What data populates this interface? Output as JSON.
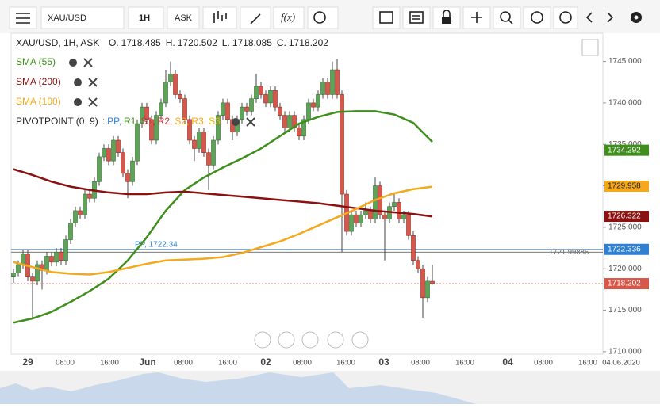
{
  "toolbar": {
    "symbol": "XAU/USD",
    "interval": "1H",
    "price_type": "ASK",
    "function": "f(x)"
  },
  "chart_data": {
    "type": "candlestick",
    "header": "XAU/USD, 1H, ASK",
    "ohlc_labels": [
      "O.",
      "H.",
      "L.",
      "C."
    ],
    "up_color": "#5fa35a",
    "down_color": "#d6584b",
    "ylim": [
      1709.7,
      1748.4
    ],
    "yticks": [
      {
        "value": 1710,
        "label": "1710.000"
      },
      {
        "value": 1715,
        "label": "1715.000"
      },
      {
        "value": 1720,
        "label": "1720.000"
      },
      {
        "value": 1725,
        "label": "1725.000"
      },
      {
        "value": 1730,
        "label": "1730.000"
      },
      {
        "value": 1735,
        "label": "1735.000"
      },
      {
        "value": 1740,
        "label": "1740.000"
      },
      {
        "value": 1745,
        "label": "1745.000"
      }
    ],
    "xlabels": [
      "29",
      "08:00",
      "16:00",
      "Jun",
      "08:00",
      "16:00",
      "02",
      "08:00",
      "16:00",
      "03",
      "08:00",
      "16:00",
      "04",
      "08:00",
      "16:00",
      "04.06.2020"
    ],
    "ohlc": [
      [
        1719.0,
        1720.0,
        1718.3,
        1719.5
      ],
      [
        1719.5,
        1721.0,
        1719.0,
        1720.5
      ],
      [
        1720.5,
        1722.3,
        1720.0,
        1721.8
      ],
      [
        1721.8,
        1722.3,
        1718.5,
        1719.0
      ],
      [
        1719.0,
        1719.5,
        1714.0,
        1718.5
      ],
      [
        1718.5,
        1721.0,
        1718.0,
        1720.5
      ],
      [
        1720.5,
        1721.0,
        1717.5,
        1719.8
      ],
      [
        1719.8,
        1722.0,
        1719.3,
        1721.5
      ],
      [
        1721.5,
        1722.0,
        1720.3,
        1720.8
      ],
      [
        1720.8,
        1722.5,
        1720.3,
        1722.0
      ],
      [
        1722.0,
        1722.5,
        1720.5,
        1721.0
      ],
      [
        1721.0,
        1724.0,
        1720.5,
        1723.5
      ],
      [
        1723.5,
        1726.0,
        1723.0,
        1725.5
      ],
      [
        1725.5,
        1727.5,
        1725.0,
        1727.0
      ],
      [
        1727.0,
        1727.5,
        1726.0,
        1726.5
      ],
      [
        1726.5,
        1729.5,
        1726.0,
        1729.0
      ],
      [
        1729.0,
        1729.5,
        1728.0,
        1728.5
      ],
      [
        1728.5,
        1731.0,
        1728.0,
        1730.5
      ],
      [
        1730.5,
        1734.0,
        1730.0,
        1733.5
      ],
      [
        1733.5,
        1735.0,
        1733.0,
        1734.5
      ],
      [
        1734.5,
        1735.0,
        1732.5,
        1733.0
      ],
      [
        1733.0,
        1736.0,
        1732.5,
        1735.5
      ],
      [
        1735.5,
        1736.0,
        1733.5,
        1734.0
      ],
      [
        1734.0,
        1734.5,
        1731.0,
        1731.5
      ],
      [
        1731.5,
        1732.0,
        1728.5,
        1730.5
      ],
      [
        1730.5,
        1733.5,
        1730.0,
        1733.0
      ],
      [
        1733.0,
        1738.0,
        1732.5,
        1737.5
      ],
      [
        1737.5,
        1740.0,
        1737.0,
        1739.5
      ],
      [
        1739.5,
        1740.0,
        1737.5,
        1738.0
      ],
      [
        1738.0,
        1738.5,
        1735.0,
        1735.5
      ],
      [
        1735.5,
        1739.0,
        1735.0,
        1738.5
      ],
      [
        1738.5,
        1740.5,
        1738.0,
        1740.0
      ],
      [
        1740.0,
        1744.0,
        1739.5,
        1742.5
      ],
      [
        1742.5,
        1745.0,
        1742.0,
        1743.5
      ],
      [
        1743.5,
        1744.0,
        1740.5,
        1741.0
      ],
      [
        1741.0,
        1741.5,
        1740.0,
        1740.5
      ],
      [
        1740.5,
        1741.0,
        1737.5,
        1738.0
      ],
      [
        1738.0,
        1738.5,
        1735.0,
        1735.5
      ],
      [
        1735.5,
        1736.0,
        1733.0,
        1734.5
      ],
      [
        1734.5,
        1737.0,
        1734.0,
        1736.5
      ],
      [
        1736.5,
        1737.0,
        1733.5,
        1734.0
      ],
      [
        1734.0,
        1734.5,
        1729.5,
        1732.5
      ],
      [
        1732.5,
        1736.0,
        1732.0,
        1735.5
      ],
      [
        1735.5,
        1739.0,
        1735.0,
        1738.5
      ],
      [
        1738.5,
        1740.5,
        1738.0,
        1740.0
      ],
      [
        1740.0,
        1740.5,
        1737.5,
        1738.0
      ],
      [
        1738.0,
        1738.5,
        1735.5,
        1736.5
      ],
      [
        1736.5,
        1738.5,
        1736.0,
        1738.0
      ],
      [
        1738.0,
        1740.0,
        1737.5,
        1739.5
      ],
      [
        1739.5,
        1740.0,
        1738.5,
        1739.0
      ],
      [
        1739.0,
        1741.0,
        1738.5,
        1740.5
      ],
      [
        1740.5,
        1743.5,
        1740.0,
        1742.0
      ],
      [
        1742.0,
        1742.5,
        1740.5,
        1741.0
      ],
      [
        1741.0,
        1741.5,
        1739.5,
        1740.0
      ],
      [
        1740.0,
        1742.0,
        1739.5,
        1741.5
      ],
      [
        1741.5,
        1742.0,
        1739.0,
        1739.5
      ],
      [
        1739.5,
        1740.0,
        1738.0,
        1738.5
      ],
      [
        1738.5,
        1739.0,
        1736.5,
        1737.0
      ],
      [
        1737.0,
        1739.0,
        1736.5,
        1738.5
      ],
      [
        1738.5,
        1739.0,
        1736.5,
        1737.0
      ],
      [
        1737.0,
        1737.5,
        1735.5,
        1736.0
      ],
      [
        1736.0,
        1738.5,
        1735.5,
        1738.0
      ],
      [
        1738.0,
        1740.5,
        1737.5,
        1740.0
      ],
      [
        1740.0,
        1740.5,
        1739.0,
        1739.5
      ],
      [
        1739.5,
        1741.5,
        1739.0,
        1741.0
      ],
      [
        1741.0,
        1743.0,
        1740.5,
        1742.5
      ],
      [
        1742.5,
        1743.0,
        1740.5,
        1741.0
      ],
      [
        1741.0,
        1745.0,
        1740.5,
        1744.0
      ],
      [
        1744.0,
        1745.3,
        1740.5,
        1741.0
      ],
      [
        1741.0,
        1741.5,
        1722.0,
        1729.0
      ],
      [
        1729.0,
        1729.5,
        1724.0,
        1724.5
      ],
      [
        1724.5,
        1727.0,
        1724.0,
        1726.5
      ],
      [
        1726.5,
        1727.0,
        1725.0,
        1725.5
      ],
      [
        1725.5,
        1727.0,
        1725.0,
        1726.5
      ],
      [
        1726.5,
        1728.0,
        1726.0,
        1727.0
      ],
      [
        1727.0,
        1727.5,
        1725.5,
        1726.0
      ],
      [
        1726.0,
        1731.0,
        1725.5,
        1730.0
      ],
      [
        1730.0,
        1730.5,
        1726.0,
        1726.5
      ],
      [
        1726.5,
        1727.0,
        1721.0,
        1726.0
      ],
      [
        1726.0,
        1728.0,
        1725.5,
        1727.5
      ],
      [
        1727.5,
        1729.0,
        1727.0,
        1728.0
      ],
      [
        1728.0,
        1728.5,
        1725.5,
        1726.0
      ],
      [
        1726.0,
        1727.0,
        1725.5,
        1726.5
      ],
      [
        1726.5,
        1727.0,
        1723.5,
        1724.0
      ],
      [
        1724.0,
        1724.5,
        1720.5,
        1721.0
      ],
      [
        1721.0,
        1721.5,
        1719.5,
        1720.0
      ],
      [
        1720.0,
        1720.5,
        1714.0,
        1716.5
      ],
      [
        1716.5,
        1719.0,
        1716.0,
        1718.5
      ],
      [
        1718.485,
        1720.502,
        1718.085,
        1718.202
      ]
    ],
    "series": [
      {
        "name": "SMA (55)",
        "color": "#3f8f1c",
        "x": [
          0,
          4,
          8,
          12,
          16,
          20,
          24,
          28,
          32,
          36,
          40,
          44,
          48,
          52,
          56,
          60,
          64,
          68,
          72,
          76,
          80,
          84,
          88
        ],
        "values": [
          1713.5,
          1714.0,
          1714.8,
          1716.0,
          1717.3,
          1718.8,
          1721.0,
          1723.8,
          1727.0,
          1729.5,
          1731.0,
          1732.2,
          1733.3,
          1734.5,
          1736.0,
          1737.5,
          1738.3,
          1738.9,
          1739.0,
          1739.0,
          1738.6,
          1737.6,
          1735.3
        ]
      },
      {
        "name": "SMA (200)",
        "color": "#8b1010",
        "x": [
          0,
          4,
          8,
          12,
          16,
          20,
          24,
          28,
          32,
          36,
          40,
          44,
          48,
          52,
          56,
          60,
          64,
          68,
          72,
          76,
          80,
          84,
          88
        ],
        "values": [
          1732.0,
          1731.3,
          1730.5,
          1729.9,
          1729.5,
          1729.2,
          1729.0,
          1729.0,
          1729.2,
          1729.3,
          1729.1,
          1728.9,
          1728.7,
          1728.5,
          1728.3,
          1728.1,
          1727.9,
          1727.6,
          1727.3,
          1727.0,
          1726.8,
          1726.6,
          1726.3
        ]
      },
      {
        "name": "SMA (100)",
        "color": "#f5a81c",
        "x": [
          0,
          4,
          8,
          12,
          16,
          20,
          24,
          28,
          32,
          36,
          40,
          44,
          48,
          52,
          56,
          60,
          64,
          68,
          72,
          76,
          80,
          84,
          88
        ],
        "values": [
          1720.8,
          1720.2,
          1719.6,
          1719.4,
          1719.3,
          1719.6,
          1720.1,
          1720.6,
          1721.0,
          1721.1,
          1721.2,
          1721.4,
          1721.9,
          1722.6,
          1723.3,
          1724.2,
          1725.2,
          1726.2,
          1727.2,
          1728.3,
          1729.1,
          1729.6,
          1729.9
        ]
      }
    ],
    "pivot": {
      "name": "PIVOTPOINT (0, 9)",
      "prefix": ":",
      "separator": ",",
      "levels": [
        {
          "name": "PP",
          "color": "#2f80d0"
        },
        {
          "name": "R1",
          "color": "#3f8f1c"
        },
        {
          "name": "S1",
          "color": "#d03030"
        },
        {
          "name": "R2",
          "color": "#d03030"
        },
        {
          "name": "S2",
          "color": "#f5a81c"
        },
        {
          "name": "R3",
          "color": "#f5a81c"
        },
        {
          "name": "S3",
          "color": "#e8b800"
        }
      ],
      "pp_label": "PP, 1722.34",
      "pp_value": 1722.34
    },
    "crosshair": {
      "value": 1721.99886,
      "label": "1721.99886"
    },
    "price_tags": [
      {
        "value": 1734.292,
        "color": "#3f8f1c"
      },
      {
        "value": 1729.958,
        "color": "#f5a81c"
      },
      {
        "value": 1726.322,
        "color": "#8b1010"
      },
      {
        "value": 1722.336,
        "color": "#2f80d0"
      },
      {
        "value": 1718.202,
        "color": "#d6584b"
      }
    ]
  }
}
